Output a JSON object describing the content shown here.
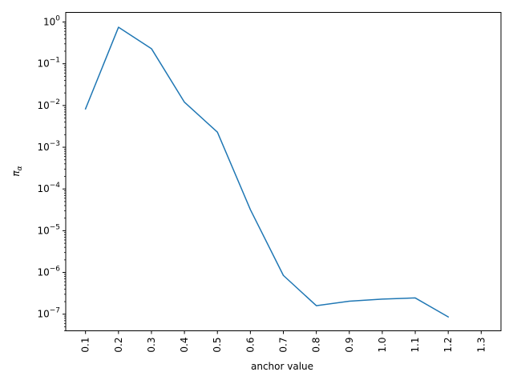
{
  "chart_data": {
    "type": "line",
    "title": "",
    "xlabel": "anchor value",
    "ylabel": "π_α",
    "ylabel_base": "π",
    "ylabel_sub": "α",
    "yscale": "log",
    "ylim": [
      4e-08,
      1.7
    ],
    "xlim": [
      0.04,
      1.36
    ],
    "grid": false,
    "x_tick_labels": [
      "0.1",
      "0.2",
      "0.3",
      "0.4",
      "0.5",
      "0.6",
      "0.7",
      "0.8",
      "0.9",
      "1.0",
      "1.1",
      "1.2",
      "1.3"
    ],
    "y_tick_exponents": [
      -7,
      -6,
      -5,
      -4,
      -3,
      -2,
      -1,
      0
    ],
    "series": [
      {
        "color": "#1f77b4",
        "x": [
          0.1,
          0.2,
          0.3,
          0.4,
          0.5,
          0.6,
          0.7,
          0.8,
          0.9,
          1.0,
          1.1,
          1.2
        ],
        "y": [
          0.0083,
          0.75,
          0.23,
          0.012,
          0.0023,
          3.2e-05,
          8.5e-07,
          1.6e-07,
          2.05e-07,
          2.3e-07,
          2.45e-07,
          8.6e-08
        ]
      }
    ]
  }
}
